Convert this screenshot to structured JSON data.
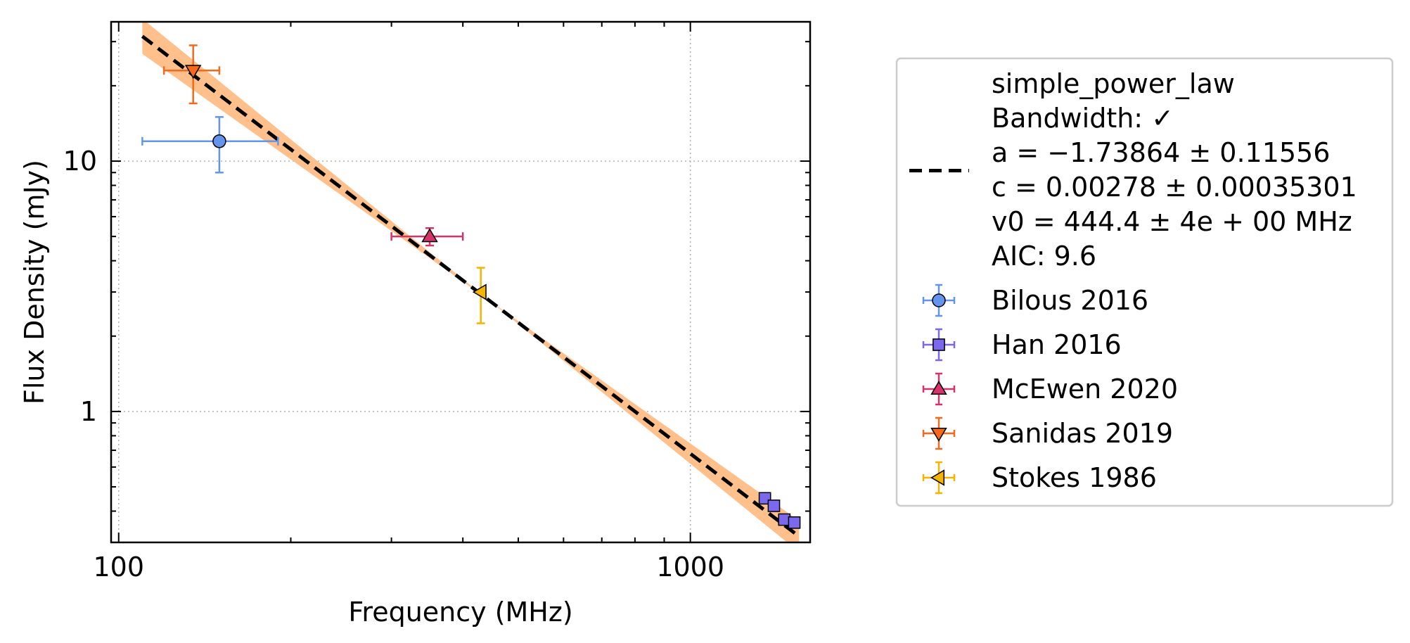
{
  "chart_data": {
    "type": "scatter",
    "title": "",
    "xlabel": "Frequency (MHz)",
    "ylabel": "Flux Density (mJy)",
    "xscale": "log",
    "yscale": "log",
    "xlim": [
      97,
      1620
    ],
    "ylim": [
      0.3,
      36
    ],
    "x_ticks": [
      {
        "value": 100,
        "label": "100"
      },
      {
        "value": 1000,
        "label": "1000"
      }
    ],
    "y_ticks": [
      {
        "value": 1,
        "label": "1"
      },
      {
        "value": 10,
        "label": "10"
      }
    ],
    "grid": true,
    "legend_position": "outside-right",
    "fit": {
      "model_label": "simple_power_law",
      "label_lines": [
        "simple_power_law",
        "Bandwidth: ✓",
        "a = −1.73864 ± 0.11556",
        "c = 0.00278 ± 0.00035301",
        "v0 = 444.4 ± 4e + 00 MHz",
        "AIC: 9.6"
      ],
      "a": -1.73864,
      "c": 0.00278,
      "v0": 444.4,
      "a_err": 0.11556,
      "x_range": [
        110,
        1550
      ],
      "line_color": "#000000",
      "band_color": "#ffc08c"
    },
    "series": [
      {
        "name": "Bilous 2016",
        "marker": "circle",
        "color": "#6495ed",
        "points": [
          {
            "x": 150,
            "y": 12.0,
            "xerr": [
              40,
              40
            ],
            "yerr": [
              3.0,
              3.0
            ]
          }
        ]
      },
      {
        "name": "Han 2016",
        "marker": "square",
        "color": "#7b68ee",
        "points": [
          {
            "x": 1350,
            "y": 0.45,
            "xerr": [
              0,
              0
            ],
            "yerr": [
              0,
              0
            ]
          },
          {
            "x": 1400,
            "y": 0.42,
            "xerr": [
              0,
              0
            ],
            "yerr": [
              0,
              0
            ]
          },
          {
            "x": 1460,
            "y": 0.37,
            "xerr": [
              0,
              0
            ],
            "yerr": [
              0,
              0
            ]
          },
          {
            "x": 1520,
            "y": 0.36,
            "xerr": [
              0,
              0
            ],
            "yerr": [
              0,
              0
            ]
          }
        ]
      },
      {
        "name": "McEwen 2020",
        "marker": "triangle-up",
        "color": "#d6336c",
        "points": [
          {
            "x": 350,
            "y": 5.0,
            "xerr": [
              50,
              50
            ],
            "yerr": [
              0.4,
              0.4
            ]
          }
        ]
      },
      {
        "name": "Sanidas 2019",
        "marker": "triangle-down",
        "color": "#f4691c",
        "points": [
          {
            "x": 135,
            "y": 23.0,
            "xerr": [
              15,
              15
            ],
            "yerr": [
              6.0,
              6.0
            ]
          }
        ]
      },
      {
        "name": "Stokes 1986",
        "marker": "triangle-left",
        "color": "#f5b400",
        "points": [
          {
            "x": 430,
            "y": 3.0,
            "xerr": [
              0,
              0
            ],
            "yerr": [
              0.75,
              0.75
            ]
          }
        ]
      }
    ]
  }
}
